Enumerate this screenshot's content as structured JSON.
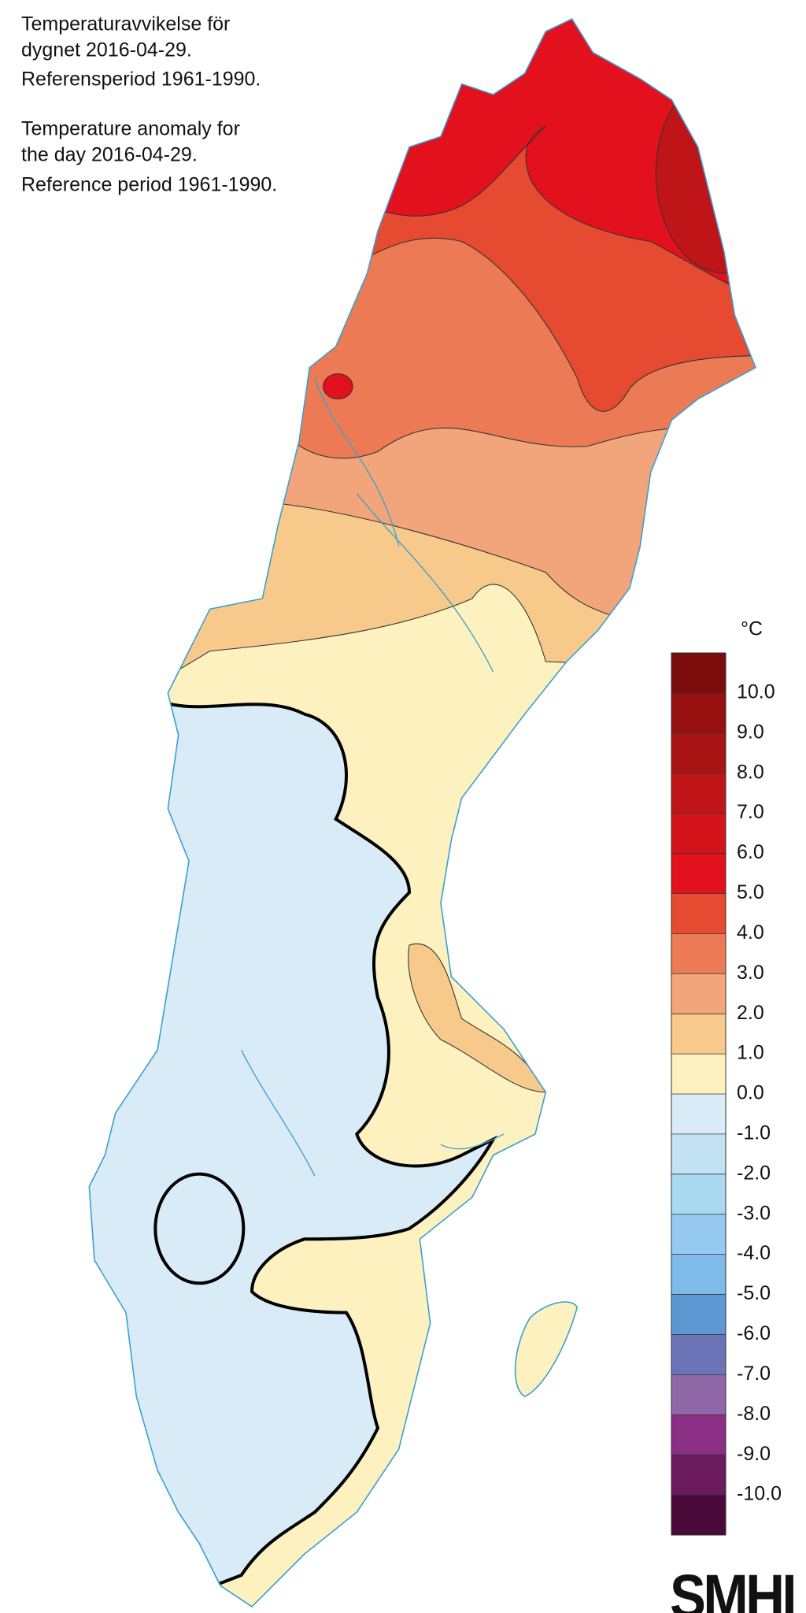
{
  "title": {
    "swedish": [
      "Temperaturavvikelse för",
      "dygnet 2016-04-29.",
      "Referensperiod 1961-1990."
    ],
    "english": [
      "Temperature anomaly for",
      "the day 2016-04-29.",
      "Reference period 1961-1990."
    ]
  },
  "legend": {
    "unit": "°C",
    "ticks": [
      {
        "value": 10,
        "label": "10.0"
      },
      {
        "value": 9,
        "label": "9.0"
      },
      {
        "value": 8,
        "label": "8.0"
      },
      {
        "value": 7,
        "label": "7.0"
      },
      {
        "value": 6,
        "label": "6.0"
      },
      {
        "value": 5,
        "label": "5.0"
      },
      {
        "value": 4,
        "label": "4.0"
      },
      {
        "value": 3,
        "label": "3.0"
      },
      {
        "value": 2,
        "label": "2.0"
      },
      {
        "value": 1,
        "label": "1.0"
      },
      {
        "value": 0,
        "label": "0.0"
      },
      {
        "value": -1,
        "label": "-1.0"
      },
      {
        "value": -2,
        "label": "-2.0"
      },
      {
        "value": -3,
        "label": "-3.0"
      },
      {
        "value": -4,
        "label": "-4.0"
      },
      {
        "value": -5,
        "label": "-5.0"
      },
      {
        "value": -6,
        "label": "-6.0"
      },
      {
        "value": -7,
        "label": "-7.0"
      },
      {
        "value": -8,
        "label": "-8.0"
      },
      {
        "value": -9,
        "label": "-9.0"
      },
      {
        "value": -10,
        "label": "-10.0"
      }
    ],
    "colors": [
      "#7a0c0c",
      "#95100f",
      "#a81414",
      "#bf1518",
      "#d4141b",
      "#e3101d",
      "#e64a30",
      "#ec7a55",
      "#f2a57a",
      "#f7c98a",
      "#fdf1c0",
      "#d8ebf7",
      "#c2e2f4",
      "#a9d8f1",
      "#96c9ef",
      "#7fbbea",
      "#5d98d4",
      "#6a74b6",
      "#9067a6",
      "#8a2f84",
      "#6b1a5e",
      "#4a0a3a"
    ]
  },
  "logo": "SMHI"
}
